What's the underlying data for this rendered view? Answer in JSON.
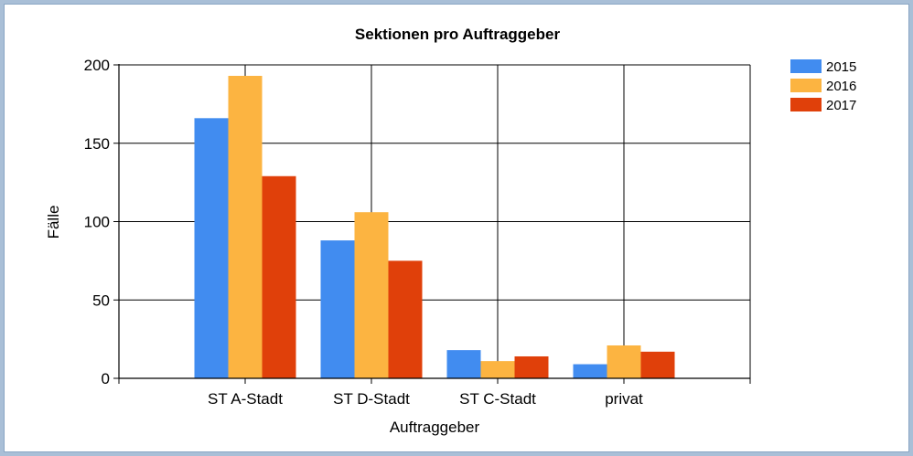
{
  "chart_data": {
    "type": "bar",
    "title": "Sektionen pro Auftraggeber",
    "xlabel": "Auftraggeber",
    "ylabel": "Fälle",
    "categories": [
      "ST A-Stadt",
      "ST D-Stadt",
      "ST C-Stadt",
      "privat"
    ],
    "series": [
      {
        "name": "2015",
        "color": "#418cf0",
        "values": [
          166,
          88,
          18,
          9
        ]
      },
      {
        "name": "2016",
        "color": "#fcb441",
        "values": [
          193,
          106,
          11,
          21
        ]
      },
      {
        "name": "2017",
        "color": "#e0400a",
        "values": [
          129,
          75,
          14,
          17
        ]
      }
    ],
    "ylim": [
      0,
      200
    ],
    "yticks": [
      0,
      50,
      100,
      150,
      200
    ],
    "grid": true,
    "legend": "top-right"
  }
}
